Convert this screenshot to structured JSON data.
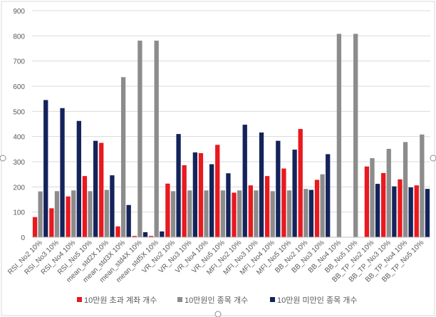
{
  "chart_data": {
    "type": "bar",
    "categories": [
      "RSI_No2 10%",
      "RSI_No3 10%",
      "RSI_No4 10%",
      "RSI_No5 10%",
      "mean_std2X 10%",
      "mean_std3X 10%",
      "mean_std4X 10%",
      "mean_std5X 10%",
      "VR_No2 10%",
      "VR_No3 10%",
      "VR_No4 10%",
      "VR_No5 10%",
      "MFI_No2 10%",
      "MFI_No3 10%",
      "MFI_No4 10%",
      "MFI_No5 10%",
      "BB_No2 10%",
      "BB_No3 10%",
      "BB_No4 10%",
      "BB_No5 10%",
      "BB_TP_No2 10%",
      "BB_TP_No3 10%",
      "BB_TP_No4 10%",
      "BB_TP_No5 10%"
    ],
    "series": [
      {
        "name": "10만원 초과 계좌 개수",
        "color": "#e8191f",
        "values": [
          80,
          115,
          162,
          243,
          375,
          43,
          5,
          5,
          213,
          286,
          334,
          367,
          177,
          206,
          243,
          273,
          430,
          228,
          0,
          0,
          281,
          255,
          230,
          206
        ]
      },
      {
        "name": "10만원인 종목 개수",
        "color": "#8c8c8c",
        "values": [
          182,
          183,
          186,
          183,
          188,
          636,
          781,
          781,
          183,
          186,
          186,
          186,
          186,
          186,
          183,
          186,
          192,
          250,
          808,
          808,
          314,
          351,
          378,
          408
        ]
      },
      {
        "name": "10만원 미만인 종목 개수",
        "color": "#14235a",
        "values": [
          545,
          513,
          462,
          383,
          246,
          128,
          20,
          23,
          410,
          337,
          290,
          254,
          447,
          416,
          383,
          348,
          188,
          330,
          0,
          0,
          212,
          202,
          198,
          192
        ]
      }
    ],
    "title": "",
    "xlabel": "",
    "ylabel": "",
    "ylim": [
      0,
      900
    ],
    "yticks": [
      "0",
      "100",
      "200",
      "300",
      "400",
      "500",
      "600",
      "700",
      "800",
      "900"
    ],
    "gridlines": true,
    "legend_position": "bottom"
  }
}
